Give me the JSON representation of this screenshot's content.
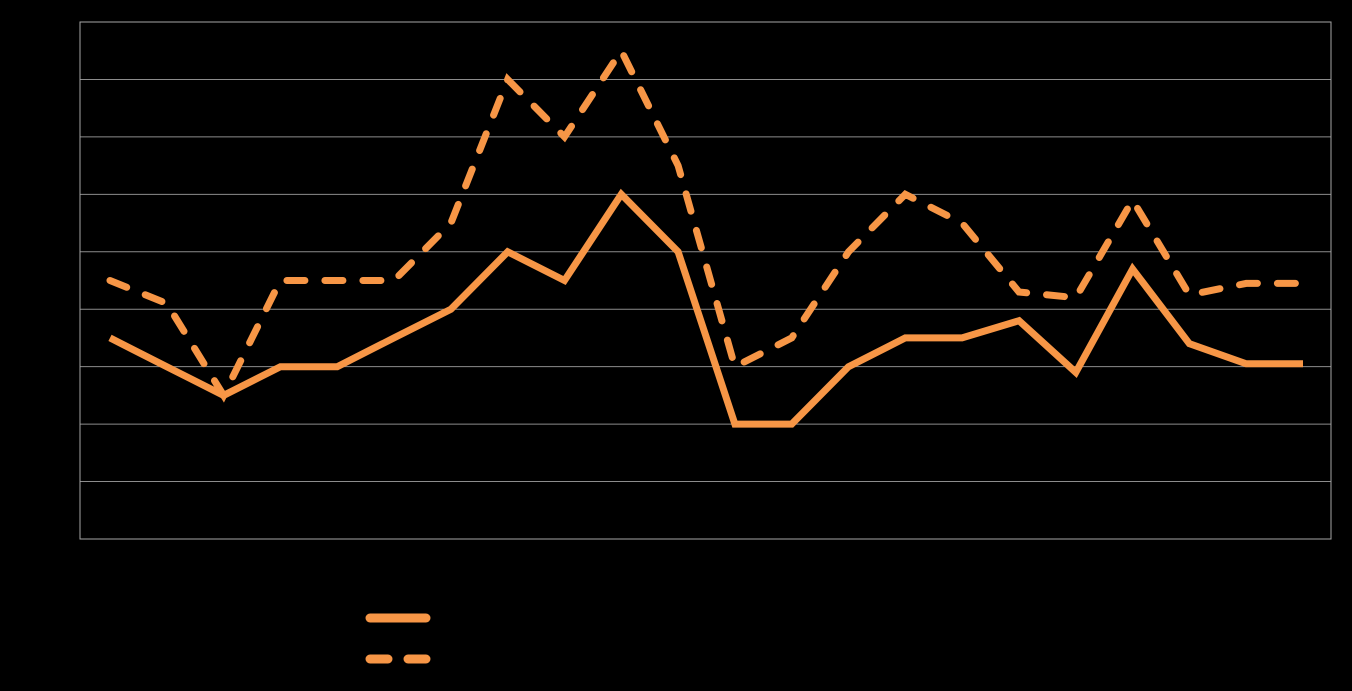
{
  "chart_data": {
    "type": "line",
    "title": "",
    "xlabel": "",
    "ylabel": "",
    "ylim": [
      0,
      9
    ],
    "grid": true,
    "legend_position": "bottom-left",
    "x": [
      1,
      2,
      3,
      4,
      5,
      6,
      7,
      8,
      9,
      10,
      11,
      12,
      13,
      14,
      15,
      16,
      17,
      18,
      19,
      20,
      21,
      22
    ],
    "series": [
      {
        "style": "solid",
        "color": "#F79646",
        "values": [
          3.5,
          3.0,
          2.5,
          3.0,
          3.0,
          3.5,
          4.0,
          5.0,
          4.5,
          6.0,
          5.0,
          2.0,
          2.0,
          3.0,
          3.5,
          3.5,
          3.8,
          2.9,
          4.7,
          3.4,
          3.05,
          3.05
        ]
      },
      {
        "style": "dashed",
        "color": "#F79646",
        "values": [
          4.5,
          4.1,
          2.5,
          4.5,
          4.5,
          4.5,
          5.5,
          8.0,
          7.0,
          8.5,
          6.5,
          3.0,
          3.5,
          5.0,
          6.0,
          5.5,
          4.3,
          4.2,
          5.9,
          4.25,
          4.45,
          4.45
        ]
      }
    ]
  }
}
